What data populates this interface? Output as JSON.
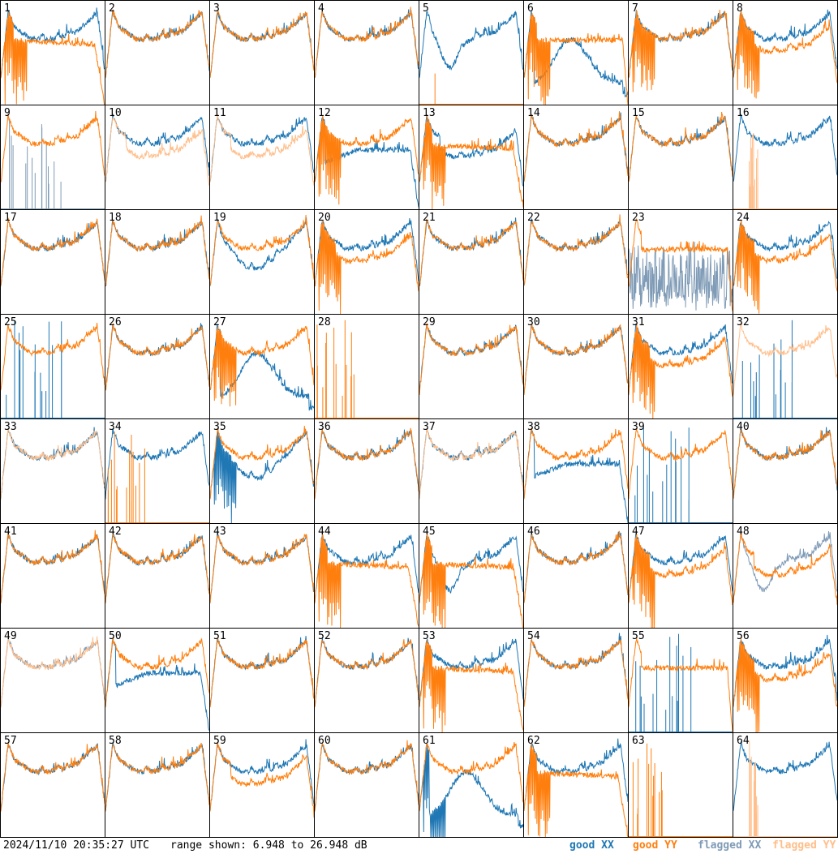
{
  "footer": {
    "timestamp": "2024/11/10 20:35:27 UTC",
    "range_text": "range shown: 6.948 to 26.948 dB"
  },
  "legend": {
    "good_xx": "good XX",
    "good_yy": "good YY",
    "flagged_xx": "flagged XX",
    "flagged_yy": "flagged YY"
  },
  "colors": {
    "good_xx": "#1f77b4",
    "good_yy": "#ff7f0e",
    "flagged_xx": "#7f9bb6",
    "flagged_yy": "#ffbe8a",
    "border": "#000000"
  },
  "chart_data": {
    "type": "line",
    "panels_grid": "8x8",
    "y_range_db": [
      6.948,
      26.948
    ],
    "panels": [
      {
        "id": "1",
        "xx": "good",
        "yy": "good",
        "xx_shape": "normal",
        "yy_shape": "dropoff_late",
        "yy_spiky": true
      },
      {
        "id": "2",
        "xx": "good",
        "yy": "good",
        "xx_shape": "normal",
        "yy_shape": "normal"
      },
      {
        "id": "3",
        "xx": "good",
        "yy": "good",
        "xx_shape": "normal",
        "yy_shape": "normal"
      },
      {
        "id": "4",
        "xx": "good",
        "yy": "good",
        "xx_shape": "normal",
        "yy_shape": "normal"
      },
      {
        "id": "5",
        "xx": "good",
        "yy": "good",
        "xx_shape": "dip_mid",
        "yy_shape": "dead"
      },
      {
        "id": "6",
        "xx": "good",
        "yy": "good",
        "xx_shape": "hump_low",
        "yy_shape": "flat_high",
        "yy_spiky": true
      },
      {
        "id": "7",
        "xx": "good",
        "yy": "good",
        "xx_shape": "normal",
        "yy_shape": "normal",
        "yy_spiky": true
      },
      {
        "id": "8",
        "xx": "good",
        "yy": "good",
        "xx_shape": "normal",
        "yy_shape": "normal_lower",
        "yy_spiky": true
      },
      {
        "id": "9",
        "xx": "flagged",
        "yy": "good",
        "xx_shape": "sparse",
        "yy_shape": "normal"
      },
      {
        "id": "10",
        "xx": "good",
        "yy": "flagged",
        "xx_shape": "normal",
        "yy_shape": "normal_lower"
      },
      {
        "id": "11",
        "xx": "good",
        "yy": "flagged",
        "xx_shape": "normal",
        "yy_shape": "normal_lower"
      },
      {
        "id": "12",
        "xx": "good",
        "yy": "good",
        "xx_shape": "rise_dropoff",
        "yy_shape": "normal",
        "yy_spiky": true
      },
      {
        "id": "13",
        "xx": "good",
        "yy": "good",
        "xx_shape": "normal_lower",
        "yy_shape": "dropoff_late",
        "yy_spiky": true
      },
      {
        "id": "14",
        "xx": "good",
        "yy": "good",
        "xx_shape": "normal",
        "yy_shape": "normal"
      },
      {
        "id": "15",
        "xx": "good",
        "yy": "good",
        "xx_shape": "normal",
        "yy_shape": "normal"
      },
      {
        "id": "16",
        "xx": "good",
        "yy": "flagged",
        "xx_shape": "normal",
        "yy_shape": "sparse"
      },
      {
        "id": "17",
        "xx": "good",
        "yy": "good",
        "xx_shape": "normal",
        "yy_shape": "normal"
      },
      {
        "id": "18",
        "xx": "good",
        "yy": "good",
        "xx_shape": "normal",
        "yy_shape": "normal"
      },
      {
        "id": "19",
        "xx": "good",
        "yy": "good",
        "xx_shape": "low_mid",
        "yy_shape": "normal"
      },
      {
        "id": "20",
        "xx": "good",
        "yy": "good",
        "xx_shape": "normal",
        "yy_shape": "normal_lower",
        "yy_spiky": true
      },
      {
        "id": "21",
        "xx": "good",
        "yy": "good",
        "xx_shape": "normal",
        "yy_shape": "normal"
      },
      {
        "id": "22",
        "xx": "good",
        "yy": "good",
        "xx_shape": "normal",
        "yy_shape": "normal"
      },
      {
        "id": "23",
        "xx": "flagged",
        "yy": "good",
        "xx_shape": "noise",
        "yy_shape": "flat_high"
      },
      {
        "id": "24",
        "xx": "good",
        "yy": "good",
        "xx_shape": "normal",
        "yy_shape": "normal_lower",
        "yy_spiky": true
      },
      {
        "id": "25",
        "xx": "good",
        "yy": "good",
        "xx_shape": "sparse",
        "yy_shape": "normal"
      },
      {
        "id": "26",
        "xx": "good",
        "yy": "good",
        "xx_shape": "normal",
        "yy_shape": "normal"
      },
      {
        "id": "27",
        "xx": "good",
        "yy": "good",
        "xx_shape": "hump_low",
        "yy_shape": "normal",
        "yy_spiky": true
      },
      {
        "id": "28",
        "xx": "good",
        "yy": "good",
        "xx_shape": "dead",
        "yy_shape": "spikes_only"
      },
      {
        "id": "29",
        "xx": "good",
        "yy": "good",
        "xx_shape": "normal",
        "yy_shape": "normal"
      },
      {
        "id": "30",
        "xx": "good",
        "yy": "good",
        "xx_shape": "normal",
        "yy_shape": "normal"
      },
      {
        "id": "31",
        "xx": "good",
        "yy": "good",
        "xx_shape": "normal",
        "yy_shape": "normal_lower",
        "yy_spiky": true
      },
      {
        "id": "32",
        "xx": "good",
        "yy": "flagged",
        "xx_shape": "sparse",
        "yy_shape": "normal"
      },
      {
        "id": "33",
        "xx": "good",
        "yy": "flagged",
        "xx_shape": "normal",
        "yy_shape": "normal"
      },
      {
        "id": "34",
        "xx": "good",
        "yy": "good",
        "xx_shape": "normal",
        "yy_shape": "spikes_only"
      },
      {
        "id": "35",
        "xx": "good",
        "yy": "good",
        "xx_shape": "low_mid",
        "yy_shape": "normal",
        "xx_spiky": true
      },
      {
        "id": "36",
        "xx": "good",
        "yy": "good",
        "xx_shape": "normal",
        "yy_shape": "normal"
      },
      {
        "id": "37",
        "xx": "good",
        "yy": "flagged",
        "xx_shape": "normal",
        "yy_shape": "normal"
      },
      {
        "id": "38",
        "xx": "good",
        "yy": "good",
        "xx_shape": "rise_dropoff",
        "yy_shape": "normal"
      },
      {
        "id": "39",
        "xx": "good",
        "yy": "good",
        "xx_shape": "sparse",
        "yy_shape": "normal"
      },
      {
        "id": "40",
        "xx": "good",
        "yy": "good",
        "xx_shape": "normal",
        "yy_shape": "normal"
      },
      {
        "id": "41",
        "xx": "good",
        "yy": "good",
        "xx_shape": "normal",
        "yy_shape": "normal"
      },
      {
        "id": "42",
        "xx": "good",
        "yy": "good",
        "xx_shape": "normal",
        "yy_shape": "normal"
      },
      {
        "id": "43",
        "xx": "good",
        "yy": "good",
        "xx_shape": "normal",
        "yy_shape": "normal"
      },
      {
        "id": "44",
        "xx": "good",
        "yy": "good",
        "xx_shape": "normal",
        "yy_shape": "dropoff_late",
        "yy_spiky": true
      },
      {
        "id": "45",
        "xx": "good",
        "yy": "good",
        "xx_shape": "dip_mid",
        "yy_shape": "dropoff_late",
        "yy_spiky": true
      },
      {
        "id": "46",
        "xx": "good",
        "yy": "good",
        "xx_shape": "normal",
        "yy_shape": "normal"
      },
      {
        "id": "47",
        "xx": "good",
        "yy": "good",
        "xx_shape": "normal",
        "yy_shape": "normal_lower",
        "yy_spiky": true
      },
      {
        "id": "48",
        "xx": "flagged",
        "yy": "good",
        "xx_shape": "dip_mid",
        "yy_shape": "normal_lower"
      },
      {
        "id": "49",
        "xx": "flagged",
        "yy": "flagged",
        "xx_shape": "normal",
        "yy_shape": "normal"
      },
      {
        "id": "50",
        "xx": "good",
        "yy": "good",
        "xx_shape": "rise_dropoff",
        "yy_shape": "normal"
      },
      {
        "id": "51",
        "xx": "good",
        "yy": "good",
        "xx_shape": "normal",
        "yy_shape": "normal"
      },
      {
        "id": "52",
        "xx": "good",
        "yy": "good",
        "xx_shape": "normal",
        "yy_shape": "normal"
      },
      {
        "id": "53",
        "xx": "good",
        "yy": "good",
        "xx_shape": "normal",
        "yy_shape": "dropoff_late",
        "yy_spiky": true
      },
      {
        "id": "54",
        "xx": "good",
        "yy": "good",
        "xx_shape": "normal",
        "yy_shape": "normal"
      },
      {
        "id": "55",
        "xx": "good",
        "yy": "good",
        "xx_shape": "sparse",
        "yy_shape": "flat_high"
      },
      {
        "id": "56",
        "xx": "good",
        "yy": "good",
        "xx_shape": "normal",
        "yy_shape": "normal_lower",
        "yy_spiky": true
      },
      {
        "id": "57",
        "xx": "good",
        "yy": "good",
        "xx_shape": "normal",
        "yy_shape": "normal"
      },
      {
        "id": "58",
        "xx": "good",
        "yy": "good",
        "xx_shape": "normal",
        "yy_shape": "normal"
      },
      {
        "id": "59",
        "xx": "good",
        "yy": "good",
        "xx_shape": "normal",
        "yy_shape": "normal_lower"
      },
      {
        "id": "60",
        "xx": "good",
        "yy": "good",
        "xx_shape": "normal",
        "yy_shape": "normal"
      },
      {
        "id": "61",
        "xx": "good",
        "yy": "good",
        "xx_shape": "hump_low",
        "yy_shape": "normal",
        "xx_spiky": true
      },
      {
        "id": "62",
        "xx": "good",
        "yy": "good",
        "xx_shape": "normal",
        "yy_shape": "dropoff_late",
        "yy_spiky": true
      },
      {
        "id": "63",
        "xx": "good",
        "yy": "good",
        "xx_shape": "dead",
        "yy_shape": "spikes_only"
      },
      {
        "id": "64",
        "xx": "good",
        "yy": "flagged",
        "xx_shape": "normal",
        "yy_shape": "sparse"
      }
    ]
  }
}
